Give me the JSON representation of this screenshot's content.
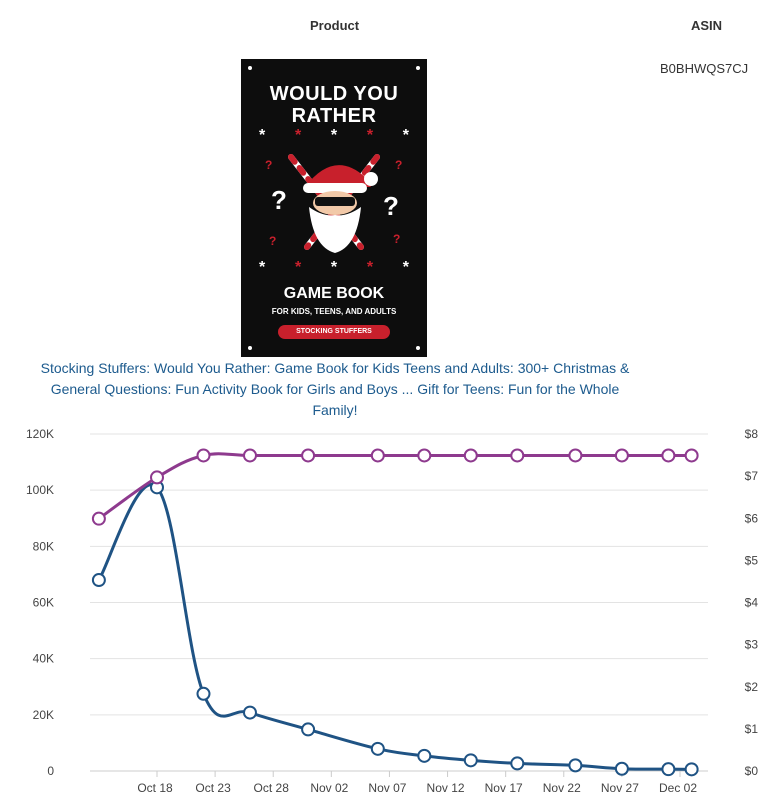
{
  "table": {
    "product_header": "Product",
    "asin_header": "ASIN",
    "asin": "B0BHWQS7CJ",
    "product_title": "Stocking Stuffers: Would You Rather: Game Book for Kids Teens and Adults: 300+ Christmas & General Questions: Fun Activity Book for Girls and Boys ... Gift for Teens: Fun for the Whole Family!"
  },
  "cover": {
    "title_line1": "WOULD YOU",
    "title_line2": "RATHER",
    "game_book": "GAME BOOK",
    "subtitle": "FOR KIDS, TEENS, AND ADULTS",
    "ribbon": "STOCKING STUFFERS"
  },
  "colors": {
    "bsr": "#1f5384",
    "price": "#8e3a8e",
    "grid": "#e3e3e3",
    "cover_accent": "#c8202c"
  },
  "chart_data": {
    "type": "line",
    "x": [
      "Oct 13",
      "Oct 18",
      "Oct 22",
      "Oct 26",
      "Oct 31",
      "Nov 06",
      "Nov 10",
      "Nov 14",
      "Nov 18",
      "Nov 23",
      "Nov 27",
      "Dec 01",
      "Dec 03"
    ],
    "x_tick_labels": [
      "Oct 18",
      "Oct 23",
      "Oct 28",
      "Nov 02",
      "Nov 07",
      "Nov 12",
      "Nov 17",
      "Nov 22",
      "Nov 27",
      "Dec 02"
    ],
    "y_left": {
      "ticks": [
        "0",
        "20K",
        "40K",
        "60K",
        "80K",
        "100K",
        "120K"
      ],
      "ylim": [
        0,
        120000
      ]
    },
    "y_right": {
      "ticks": [
        "$0",
        "$1",
        "$2",
        "$3",
        "$4",
        "$5",
        "$6",
        "$7",
        "$8"
      ],
      "ylim": [
        0,
        8
      ]
    },
    "series": [
      {
        "axis": "left",
        "values": [
          68000,
          101000,
          27500,
          20800,
          14800,
          7900,
          5400,
          3800,
          2700,
          2000,
          800,
          650,
          600
        ]
      },
      {
        "axis": "right",
        "values": [
          5.99,
          6.97,
          7.49,
          7.49,
          7.49,
          7.49,
          7.49,
          7.49,
          7.49,
          7.49,
          7.49,
          7.49,
          7.49
        ]
      }
    ],
    "grid": true
  }
}
